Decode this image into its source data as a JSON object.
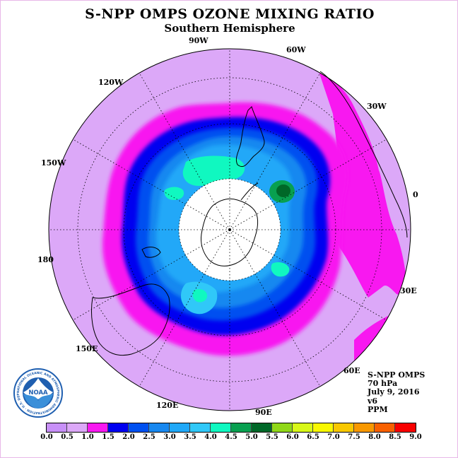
{
  "title": "S-NPP OMPS OZONE MIXING RATIO",
  "subtitle": "Southern Hemisphere",
  "logo": {
    "center_text": "NOAA",
    "ring_text": "NATIONAL OCEANIC AND ATMOSPHERIC ADMINISTRATION · U.S. DEPARTMENT OF COMMERCE"
  },
  "longitude_labels": [
    "90W",
    "60W",
    "30W",
    "0",
    "30E",
    "60E",
    "90E",
    "120E",
    "150E",
    "180",
    "150W",
    "120W"
  ],
  "info": {
    "instrument": "S-NPP OMPS",
    "level": "70 hPa",
    "date": "July 9, 2016",
    "version": "v6",
    "units": "PPM"
  },
  "colorbar": {
    "ticks": [
      "0.0",
      "0.5",
      "1.0",
      "1.5",
      "2.0",
      "2.5",
      "3.0",
      "3.5",
      "4.0",
      "4.5",
      "5.0",
      "5.5",
      "6.0",
      "6.5",
      "7.0",
      "7.5",
      "8.0",
      "8.5",
      "9.0"
    ],
    "colors": [
      "#c890f8",
      "#dca8f8",
      "#f818f0",
      "#0000f0",
      "#0050f0",
      "#1888f0",
      "#20a8f8",
      "#30c8f8",
      "#10f8c0",
      "#08a050",
      "#006828",
      "#90d818",
      "#d8f818",
      "#f8f800",
      "#f8c800",
      "#f89800",
      "#f86000",
      "#f80000",
      "#8c5a3c"
    ]
  },
  "chart_data": {
    "type": "heatmap",
    "title": "S-NPP OMPS OZONE MIXING RATIO",
    "subtitle": "Southern Hemisphere",
    "projection": "south polar stereographic",
    "variable": "ozone mixing ratio",
    "units": "PPM",
    "level": "70 hPa",
    "date": "July 9, 2016",
    "version": "v6",
    "scale_min": 0.0,
    "scale_max": 9.0,
    "scale_step": 0.5,
    "regions": [
      {
        "area": "outer hemisphere (midlatitudes)",
        "range": [
          0.5,
          1.0
        ]
      },
      {
        "area": "subpolar ring",
        "range": [
          1.0,
          1.5
        ]
      },
      {
        "area": "polar vortex edge",
        "range": [
          1.5,
          2.0
        ]
      },
      {
        "area": "inner vortex",
        "range": [
          2.0,
          3.5
        ]
      },
      {
        "area": "local maxima near 60W/30W",
        "range": [
          3.5,
          5.0
        ]
      },
      {
        "area": "pole (no data)",
        "range": null
      }
    ]
  }
}
